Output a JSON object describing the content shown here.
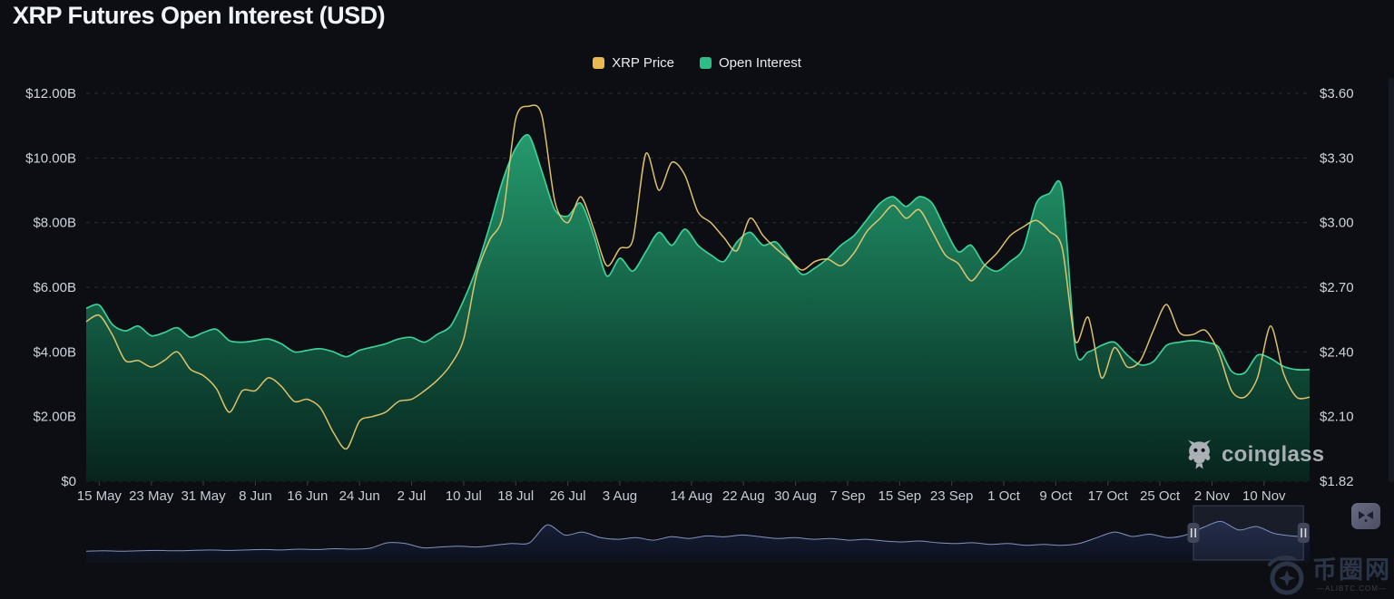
{
  "header": {
    "title": "XRP Futures Open Interest (USD)"
  },
  "legend": {
    "items": [
      {
        "label": "XRP Price",
        "color": "#e7b94e"
      },
      {
        "label": "Open Interest",
        "color": "#2ebd85"
      }
    ]
  },
  "watermark": {
    "brand": "coinglass"
  },
  "corner_watermark": {
    "site_name": "币圈网",
    "domain_text": "—ALIBTC.COM—"
  },
  "chart_data": {
    "type": "area",
    "title": "XRP Futures Open Interest (USD)",
    "grid": "horizontal dashed",
    "legend_position": "top center",
    "x_axis": {
      "start_date": "13 May",
      "end_date": "17 Nov",
      "domain_days": 188,
      "sample_interval_days": 2,
      "tick_labels": [
        "15 May",
        "23 May",
        "31 May",
        "8 Jun",
        "16 Jun",
        "24 Jun",
        "2 Jul",
        "10 Jul",
        "18 Jul",
        "26 Jul",
        "3 Aug",
        "14 Aug",
        "22 Aug",
        "30 Aug",
        "7 Sep",
        "15 Sep",
        "23 Sep",
        "1 Oct",
        "9 Oct",
        "17 Oct",
        "25 Oct",
        "2 Nov",
        "10 Nov"
      ],
      "tick_day_offsets": [
        2,
        10,
        18,
        26,
        34,
        42,
        50,
        58,
        66,
        74,
        82,
        93,
        101,
        109,
        117,
        125,
        133,
        141,
        149,
        157,
        165,
        173,
        181
      ]
    },
    "y_axis_left": {
      "unit": "USD billions",
      "tick_labels": [
        "$12.00B",
        "$10.00B",
        "$8.00B",
        "$6.00B",
        "$4.00B",
        "$2.00B",
        "$0"
      ],
      "tick_values": [
        12,
        10,
        8,
        6,
        4,
        2,
        0
      ]
    },
    "y_axis_right": {
      "unit": "USD",
      "tick_labels": [
        "$3.60",
        "$3.30",
        "$3.00",
        "$2.70",
        "$2.40",
        "$2.10",
        "$1.82"
      ],
      "tick_values": [
        3.6,
        3.3,
        3.0,
        2.7,
        2.4,
        2.1,
        1.82
      ]
    },
    "series": [
      {
        "name": "Open Interest",
        "type": "area",
        "axis": "left",
        "color": "#2ebd85",
        "line_color": "#3ecf97",
        "values_billion_usd": [
          5.35,
          5.45,
          4.85,
          4.65,
          4.8,
          4.5,
          4.6,
          4.75,
          4.45,
          4.6,
          4.7,
          4.35,
          4.3,
          4.35,
          4.4,
          4.25,
          4.0,
          4.05,
          4.1,
          4.0,
          3.85,
          4.05,
          4.15,
          4.25,
          4.4,
          4.45,
          4.3,
          4.55,
          4.8,
          5.6,
          6.6,
          7.9,
          9.3,
          10.3,
          10.7,
          9.6,
          8.4,
          8.2,
          8.6,
          7.6,
          6.35,
          6.9,
          6.5,
          7.1,
          7.7,
          7.3,
          7.8,
          7.3,
          7.0,
          6.8,
          7.4,
          7.7,
          7.3,
          7.4,
          6.9,
          6.4,
          6.6,
          6.9,
          7.3,
          7.6,
          8.1,
          8.6,
          8.8,
          8.5,
          8.8,
          8.6,
          7.8,
          7.1,
          7.3,
          6.7,
          6.5,
          6.8,
          7.2,
          8.6,
          8.9,
          9.0,
          4.1,
          4.0,
          4.2,
          4.3,
          3.9,
          3.6,
          3.7,
          4.2,
          4.3,
          4.35,
          4.3,
          4.15,
          3.4,
          3.35,
          3.9,
          3.8,
          3.55,
          3.45
        ]
      },
      {
        "name": "XRP Price",
        "type": "line",
        "axis": "right",
        "color": "#e7b94e",
        "line_color": "#e9c96f",
        "values_usd": [
          2.54,
          2.57,
          2.48,
          2.36,
          2.36,
          2.33,
          2.36,
          2.4,
          2.32,
          2.29,
          2.23,
          2.12,
          2.22,
          2.22,
          2.28,
          2.24,
          2.17,
          2.18,
          2.14,
          2.03,
          1.96,
          2.08,
          2.1,
          2.12,
          2.17,
          2.18,
          2.22,
          2.27,
          2.34,
          2.46,
          2.76,
          2.92,
          3.03,
          3.48,
          3.54,
          3.5,
          3.1,
          3.0,
          3.12,
          2.97,
          2.8,
          2.88,
          2.92,
          3.32,
          3.15,
          3.28,
          3.22,
          3.05,
          3.0,
          2.93,
          2.87,
          3.02,
          2.94,
          2.88,
          2.83,
          2.78,
          2.82,
          2.83,
          2.8,
          2.86,
          2.96,
          3.02,
          3.08,
          3.02,
          3.06,
          2.96,
          2.85,
          2.81,
          2.73,
          2.8,
          2.86,
          2.94,
          2.98,
          3.01,
          2.96,
          2.88,
          2.45,
          2.56,
          2.28,
          2.42,
          2.33,
          2.36,
          2.5,
          2.62,
          2.49,
          2.48,
          2.5,
          2.4,
          2.22,
          2.19,
          2.28,
          2.52,
          2.3,
          2.19
        ]
      }
    ]
  },
  "navigator": {
    "line_color": "#8fa2cf",
    "values_normalized": [
      0.1,
      0.11,
      0.1,
      0.11,
      0.12,
      0.11,
      0.12,
      0.13,
      0.12,
      0.13,
      0.14,
      0.13,
      0.15,
      0.14,
      0.16,
      0.15,
      0.17,
      0.3,
      0.28,
      0.18,
      0.2,
      0.22,
      0.2,
      0.24,
      0.28,
      0.3,
      0.72,
      0.48,
      0.55,
      0.42,
      0.38,
      0.42,
      0.36,
      0.44,
      0.4,
      0.46,
      0.44,
      0.48,
      0.44,
      0.4,
      0.42,
      0.38,
      0.4,
      0.36,
      0.38,
      0.34,
      0.32,
      0.34,
      0.3,
      0.28,
      0.3,
      0.26,
      0.28,
      0.24,
      0.26,
      0.24,
      0.28,
      0.42,
      0.55,
      0.45,
      0.5,
      0.42,
      0.48,
      0.66,
      0.8,
      0.6,
      0.68,
      0.52,
      0.46,
      0.44
    ],
    "selection": {
      "from": 0.905,
      "to": 0.995
    }
  }
}
